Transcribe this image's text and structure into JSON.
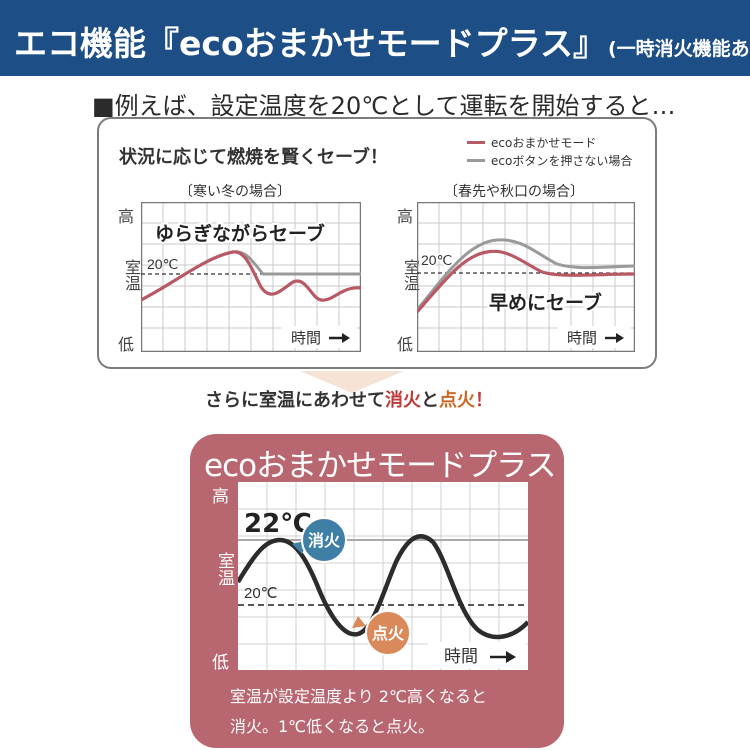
{
  "header": {
    "title": "エコ機能『ecoおまかせモードプラス』",
    "subtitle": "(一時消火機能あり)"
  },
  "intro": "■例えば、設定温度を20℃として運転を開始すると…",
  "panel": {
    "title": "状況に応じて燃焼を賢くセーブ！",
    "legend": [
      {
        "label": "ecoおまかせモード",
        "color": "#b85a66"
      },
      {
        "label": "ecoボタンを押さない場合",
        "color": "#9a9a9a"
      }
    ],
    "axis": {
      "high": "高",
      "room": "室温",
      "low": "低",
      "time": "時間"
    },
    "winter": {
      "title": "〔寒い冬の場合〕",
      "temp_label": "20℃",
      "annotation": "ゆらぎながらセーブ"
    },
    "spring": {
      "title": "〔春先や秋口の場合〕",
      "temp_label": "20℃",
      "annotation": "早めにセーブ"
    }
  },
  "middle": {
    "prefix": "さらに室温にあわせて",
    "off_word": "消火",
    "joiner": "と",
    "on_word": "点火",
    "suffix": "！"
  },
  "eco_box": {
    "title": "ecoおまかせモードプラス",
    "axis": {
      "high": "高",
      "room": "室温",
      "low": "低",
      "time": "時間"
    },
    "upper_temp": "22℃",
    "lower_temp": "20℃",
    "off_badge": "消火",
    "on_badge": "点火",
    "description_line1": "室温が設定温度より 2℃高くなると",
    "description_line2": "消火。1℃低くなると点火。"
  },
  "colors": {
    "header_bg": "#1d4f86",
    "eco_line": "#b85a66",
    "normal_line": "#9a9a9a",
    "eco_box_bg": "#b86770",
    "off_badge": "#3f7fa6",
    "on_badge": "#d9895a"
  }
}
